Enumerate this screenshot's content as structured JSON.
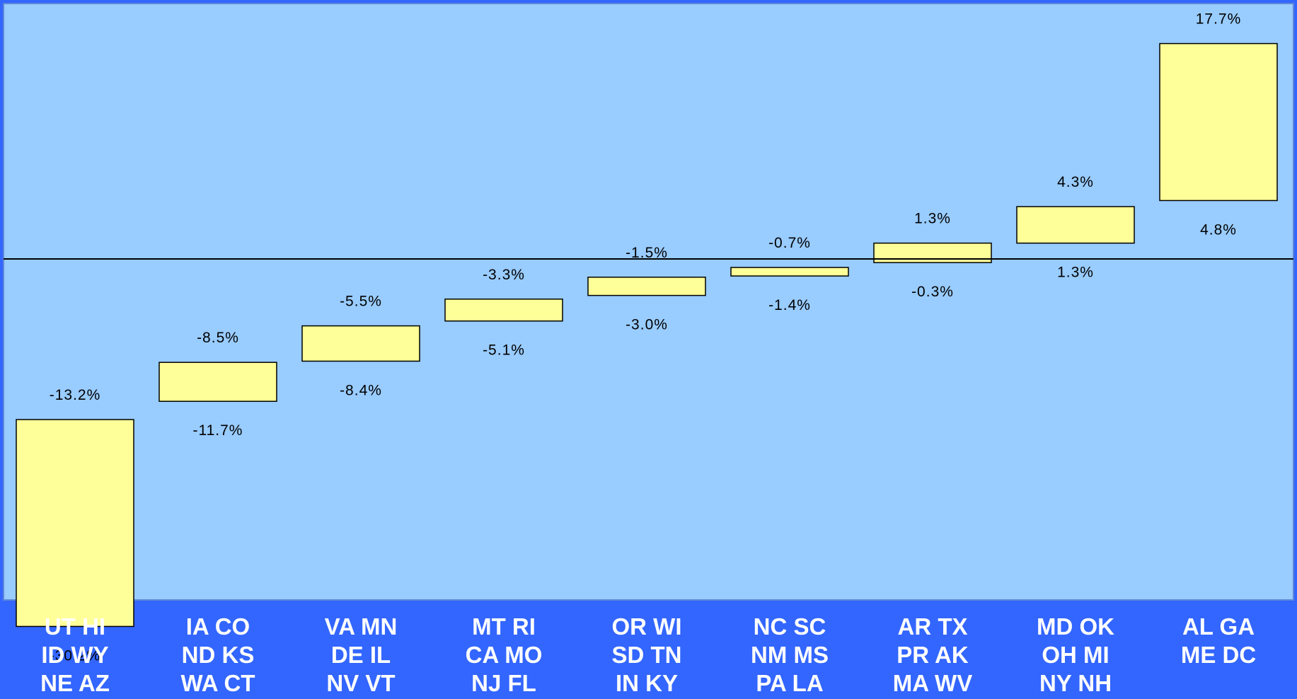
{
  "colors": {
    "page_background": "#3366ff",
    "plot_background": "#99ccff",
    "bar_fill": "#ffff99",
    "bar_stroke": "#000000",
    "zero_line": "#000000",
    "category_text": "#ffffff",
    "value_text": "#000000"
  },
  "chart_data": {
    "type": "bar",
    "subtype": "floating-range",
    "title": "",
    "xlabel": "",
    "ylabel": "",
    "ylim": [
      -35,
      21
    ],
    "grid": false,
    "legend": "none",
    "categories": [
      [
        "UT HI",
        "ID WY",
        "NE AZ"
      ],
      [
        "IA CO",
        "ND KS",
        "WA CT"
      ],
      [
        "VA MN",
        "DE IL",
        "NV VT"
      ],
      [
        "MT RI",
        "CA MO",
        "NJ FL"
      ],
      [
        "OR WI",
        "SD TN",
        "IN KY"
      ],
      [
        "NC SC",
        "NM MS",
        "PA LA"
      ],
      [
        "AR TX",
        "PR AK",
        "MA WV"
      ],
      [
        "MD OK",
        "OH MI",
        "NY NH"
      ],
      [
        "AL GA",
        "ME DC"
      ]
    ],
    "ranges": [
      {
        "high": -13.2,
        "low": -30.2,
        "high_label": "-13.2%",
        "low_label": "-30.2%"
      },
      {
        "high": -8.5,
        "low": -11.7,
        "high_label": "-8.5%",
        "low_label": "-11.7%"
      },
      {
        "high": -5.5,
        "low": -8.4,
        "high_label": "-5.5%",
        "low_label": "-8.4%"
      },
      {
        "high": -3.3,
        "low": -5.1,
        "high_label": "-3.3%",
        "low_label": "-5.1%"
      },
      {
        "high": -1.5,
        "low": -3.0,
        "high_label": "-1.5%",
        "low_label": "-3.0%"
      },
      {
        "high": -0.7,
        "low": -1.4,
        "high_label": "-0.7%",
        "low_label": "-1.4%"
      },
      {
        "high": 1.3,
        "low": -0.3,
        "high_label": "1.3%",
        "low_label": "-0.3%"
      },
      {
        "high": 4.3,
        "low": 1.3,
        "high_label": "4.3%",
        "low_label": "1.3%"
      },
      {
        "high": 17.7,
        "low": 4.8,
        "high_label": "17.7%",
        "low_label": "4.8%"
      }
    ]
  }
}
